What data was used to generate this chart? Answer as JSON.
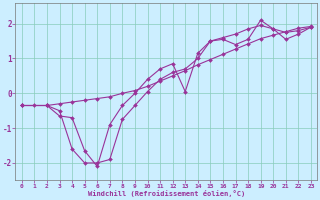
{
  "xlabel": "Windchill (Refroidissement éolien,°C)",
  "background_color": "#cceeff",
  "line_color": "#993399",
  "xlim": [
    -0.5,
    23.5
  ],
  "ylim": [
    -2.5,
    2.6
  ],
  "xticks": [
    0,
    1,
    2,
    3,
    4,
    5,
    6,
    7,
    8,
    9,
    10,
    11,
    12,
    13,
    14,
    15,
    16,
    17,
    18,
    19,
    20,
    21,
    22,
    23
  ],
  "yticks": [
    -2,
    -1,
    0,
    1,
    2
  ],
  "grid_color": "#88ccbb",
  "line1_x": [
    0,
    1,
    2,
    3,
    4,
    5,
    6,
    7,
    8,
    9,
    10,
    11,
    12,
    13,
    14,
    15,
    16,
    17,
    18,
    19,
    20,
    21,
    22,
    23
  ],
  "line1_y": [
    -0.35,
    -0.35,
    -0.35,
    -0.3,
    -0.25,
    -0.2,
    -0.15,
    -0.1,
    0.0,
    0.08,
    0.2,
    0.35,
    0.5,
    0.65,
    0.82,
    0.97,
    1.12,
    1.27,
    1.42,
    1.57,
    1.67,
    1.77,
    1.87,
    1.92
  ],
  "line2_x": [
    0,
    2,
    3,
    4,
    5,
    6,
    7,
    8,
    9,
    10,
    11,
    12,
    13,
    14,
    15,
    16,
    17,
    18,
    19,
    20,
    21,
    22,
    23
  ],
  "line2_y": [
    -0.35,
    -0.35,
    -0.5,
    -1.6,
    -2.0,
    -2.0,
    -1.9,
    -0.75,
    -0.35,
    0.05,
    0.4,
    0.6,
    0.7,
    1.0,
    1.5,
    1.55,
    1.4,
    1.55,
    2.1,
    1.85,
    1.55,
    1.7,
    1.9
  ],
  "line3_x": [
    0,
    2,
    3,
    4,
    5,
    6,
    7,
    8,
    9,
    10,
    11,
    12,
    13,
    14,
    15,
    16,
    17,
    18,
    19,
    20,
    21,
    22,
    23
  ],
  "line3_y": [
    -0.35,
    -0.35,
    -0.65,
    -0.7,
    -1.65,
    -2.1,
    -0.9,
    -0.35,
    0.0,
    0.4,
    0.7,
    0.85,
    0.05,
    1.15,
    1.5,
    1.6,
    1.7,
    1.85,
    1.95,
    1.85,
    1.75,
    1.8,
    1.9
  ]
}
